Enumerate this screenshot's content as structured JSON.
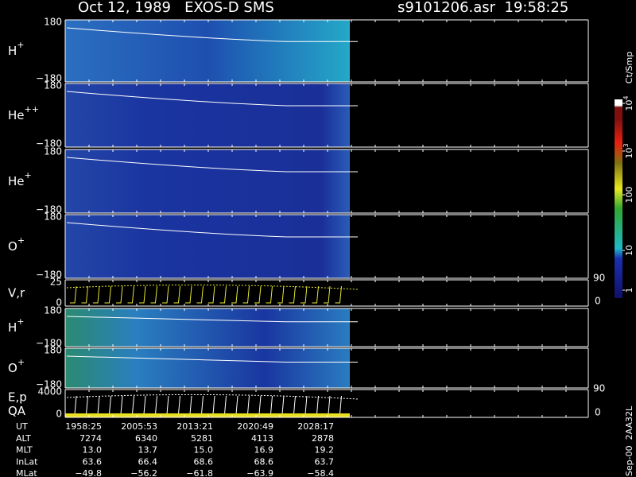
{
  "header": {
    "title": "Oct 12, 1989   EXOS-D SMS",
    "file": "s9101206.asr  19:58:25"
  },
  "panels": [
    {
      "label": "H",
      "sup": "+",
      "ticks": [
        "180",
        "−180"
      ]
    },
    {
      "label": "He",
      "sup": "++",
      "ticks": [
        "180",
        "−180"
      ]
    },
    {
      "label": "He",
      "sup": "+",
      "ticks": [
        "180",
        "−180"
      ]
    },
    {
      "label": "O",
      "sup": "+",
      "ticks": [
        "180",
        "−180"
      ]
    },
    {
      "label": "V,r",
      "ticks": [
        "25",
        "0"
      ],
      "right_ticks": [
        "90",
        "0"
      ]
    },
    {
      "label": "H",
      "sup": "+",
      "ticks": [
        "180",
        "−180"
      ]
    },
    {
      "label": "O",
      "sup": "+",
      "ticks": [
        "180",
        "−180"
      ]
    },
    {
      "label": "E,p",
      "label2": "QA",
      "ticks": [
        "4000",
        "0"
      ],
      "right_ticks": [
        "90",
        "0"
      ]
    }
  ],
  "colorbar": {
    "unit": "Ct/Smp",
    "labels": [
      {
        "text": "1"
      },
      {
        "text": "10"
      },
      {
        "text": "100"
      },
      {
        "text": "10",
        "sup": "3"
      },
      {
        "text": "10",
        "sup": "4"
      }
    ]
  },
  "ephemeris": {
    "rows": [
      {
        "name": "UT",
        "values": [
          "1958:25",
          "2005:53",
          "2013:21",
          "2020:49",
          "2028:17"
        ]
      },
      {
        "name": "ALT",
        "values": [
          "7274",
          "6340",
          "5281",
          "4113",
          "2878"
        ]
      },
      {
        "name": "MLT",
        "values": [
          "13.0",
          "13.7",
          "15.0",
          "16.9",
          "19.2"
        ]
      },
      {
        "name": "InLat",
        "values": [
          "63.6",
          "66.4",
          "68.6",
          "68.6",
          "63.7"
        ]
      },
      {
        "name": "MLat",
        "values": [
          "−49.8",
          "−56.2",
          "−61.8",
          "−63.9",
          "−58.4"
        ]
      }
    ]
  },
  "footer": "Sep-00  2AA32L"
}
